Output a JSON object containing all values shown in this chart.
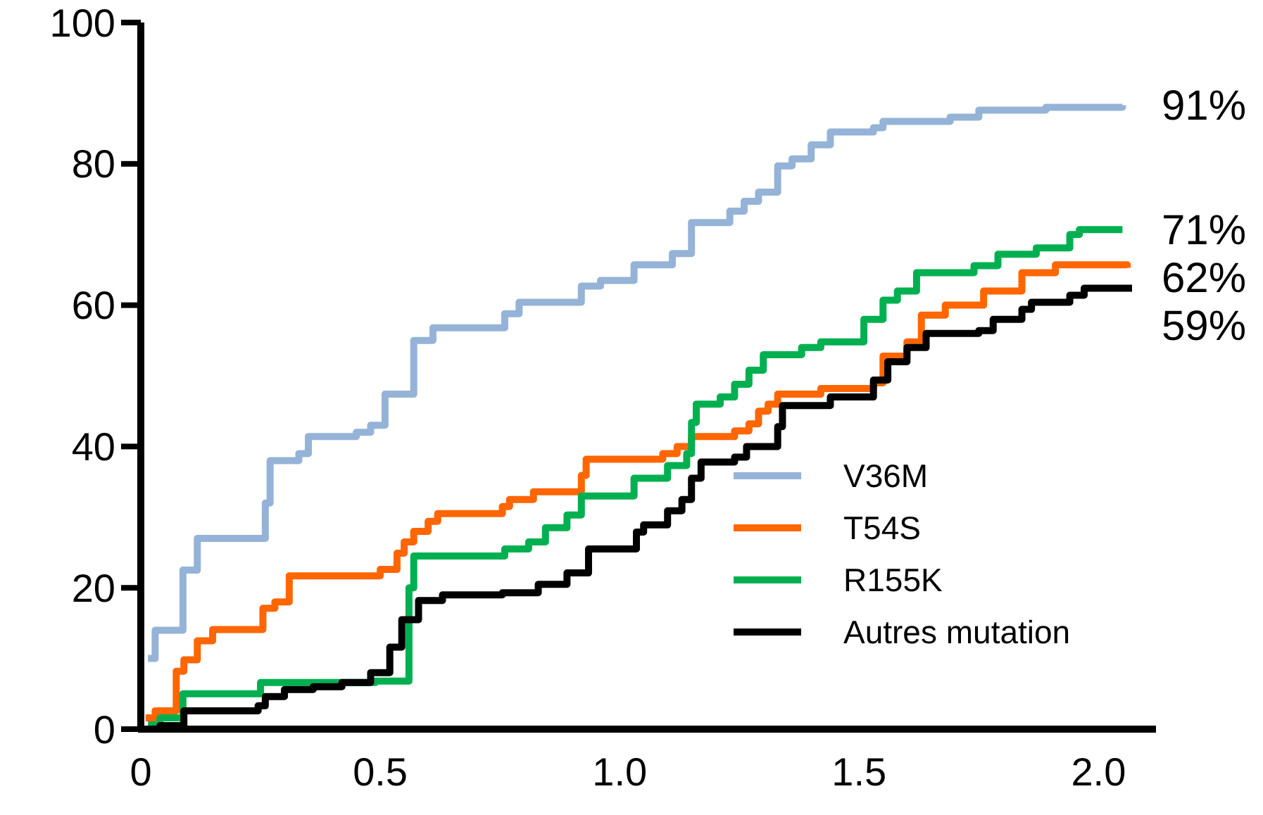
{
  "chart_data": {
    "type": "step",
    "xlim": [
      0,
      2.12
    ],
    "ylim": [
      0,
      100
    ],
    "xticks": [
      0,
      {
        "value": 0.5,
        "label": "0.5"
      },
      {
        "value": 1,
        "label": "1.0"
      },
      {
        "value": 1.5,
        "label": "1.5"
      },
      {
        "value": 2,
        "label": "2.0"
      }
    ],
    "yticks": [
      0,
      20,
      40,
      60,
      80,
      100
    ],
    "grid": false,
    "legend": "bottom right",
    "line_style": "solid",
    "marker": "none",
    "annotations": [
      "91%",
      "71%",
      "62%",
      "59%"
    ],
    "series": [
      {
        "name": "V36M",
        "color": "#95b3d7",
        "x": [
          0.015,
          0.03,
          0.088,
          0.118,
          0.26,
          0.27,
          0.33,
          0.35,
          0.45,
          0.48,
          0.51,
          0.57,
          0.61,
          0.76,
          0.79,
          0.92,
          0.96,
          1.03,
          1.11,
          1.15,
          1.23,
          1.26,
          1.29,
          1.33,
          1.36,
          1.4,
          1.44,
          1.53,
          1.55,
          1.69,
          1.75,
          1.89,
          2.05
        ],
        "values": [
          10,
          14,
          22.5,
          27,
          32,
          38,
          39,
          41.4,
          42,
          43,
          47.4,
          55,
          56.8,
          58.8,
          60.4,
          62.7,
          63.5,
          65.7,
          67.3,
          71.7,
          73.3,
          74.7,
          76,
          79.7,
          80.7,
          82.7,
          84.5,
          85.1,
          86,
          86.6,
          87.6,
          88,
          88.3
        ]
      },
      {
        "name": "T54S",
        "color": "#ff6600",
        "x": [
          0.01,
          0.03,
          0.074,
          0.09,
          0.118,
          0.15,
          0.255,
          0.28,
          0.31,
          0.5,
          0.535,
          0.55,
          0.57,
          0.6,
          0.62,
          0.755,
          0.77,
          0.82,
          0.92,
          0.93,
          1.09,
          1.12,
          1.15,
          1.24,
          1.27,
          1.29,
          1.31,
          1.33,
          1.42,
          1.53,
          1.55,
          1.6,
          1.63,
          1.68,
          1.76,
          1.84,
          1.91,
          2.06
        ],
        "values": [
          1.6,
          2.6,
          8.2,
          9.8,
          12.5,
          14.1,
          17.1,
          18,
          21.7,
          22.6,
          24.9,
          26.5,
          28,
          29.4,
          30.5,
          31.5,
          32.5,
          33.6,
          35.9,
          38.2,
          39,
          40,
          41.4,
          42.2,
          43.2,
          45,
          46,
          47.4,
          48.2,
          49,
          52.8,
          54.8,
          58.6,
          60,
          62,
          64.6,
          65.7,
          65.3
        ]
      },
      {
        "name": "R155K",
        "color": "#00b050",
        "x": [
          0.015,
          0.04,
          0.088,
          0.25,
          0.49,
          0.56,
          0.57,
          0.76,
          0.81,
          0.845,
          0.89,
          0.92,
          1.03,
          1.1,
          1.14,
          1.15,
          1.16,
          1.21,
          1.24,
          1.27,
          1.3,
          1.38,
          1.42,
          1.51,
          1.55,
          1.58,
          1.62,
          1.74,
          1.79,
          1.87,
          1.94,
          1.96,
          2.05
        ],
        "values": [
          0.6,
          1.6,
          5,
          6.6,
          6.8,
          20,
          24.5,
          25.5,
          26.5,
          28.5,
          30.3,
          33,
          35.5,
          37.3,
          39,
          43.4,
          46,
          47,
          48.8,
          50.8,
          53,
          54,
          54.8,
          58,
          60.7,
          62,
          64.6,
          65.6,
          67.2,
          68.1,
          70,
          70.7,
          70.7
        ]
      },
      {
        "name": "Autres mutation",
        "color": "#000000",
        "x": [
          0.015,
          0.04,
          0.09,
          0.245,
          0.26,
          0.3,
          0.36,
          0.42,
          0.48,
          0.52,
          0.545,
          0.58,
          0.63,
          0.755,
          0.83,
          0.89,
          0.935,
          1.035,
          1.05,
          1.1,
          1.13,
          1.15,
          1.17,
          1.24,
          1.265,
          1.33,
          1.34,
          1.44,
          1.53,
          1.56,
          1.6,
          1.64,
          1.75,
          1.78,
          1.84,
          1.86,
          1.94,
          1.97,
          2.07
        ],
        "values": [
          0,
          0.5,
          2.6,
          3.3,
          4.6,
          5.6,
          6,
          6.6,
          8,
          11.6,
          15.5,
          18.2,
          19,
          19.3,
          20.5,
          22.1,
          25.5,
          27.9,
          28.9,
          30.9,
          32.5,
          35.5,
          37.8,
          38.5,
          40,
          42.8,
          45.8,
          47,
          49.4,
          52,
          54,
          56,
          56.4,
          58,
          59.4,
          60.4,
          61.4,
          62.4,
          62.4
        ]
      }
    ]
  }
}
